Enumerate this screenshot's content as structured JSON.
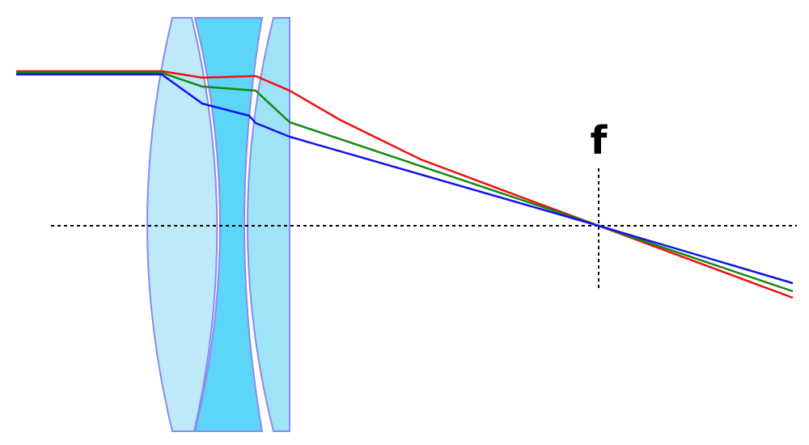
{
  "focal_point": {
    "label": "f"
  }
}
